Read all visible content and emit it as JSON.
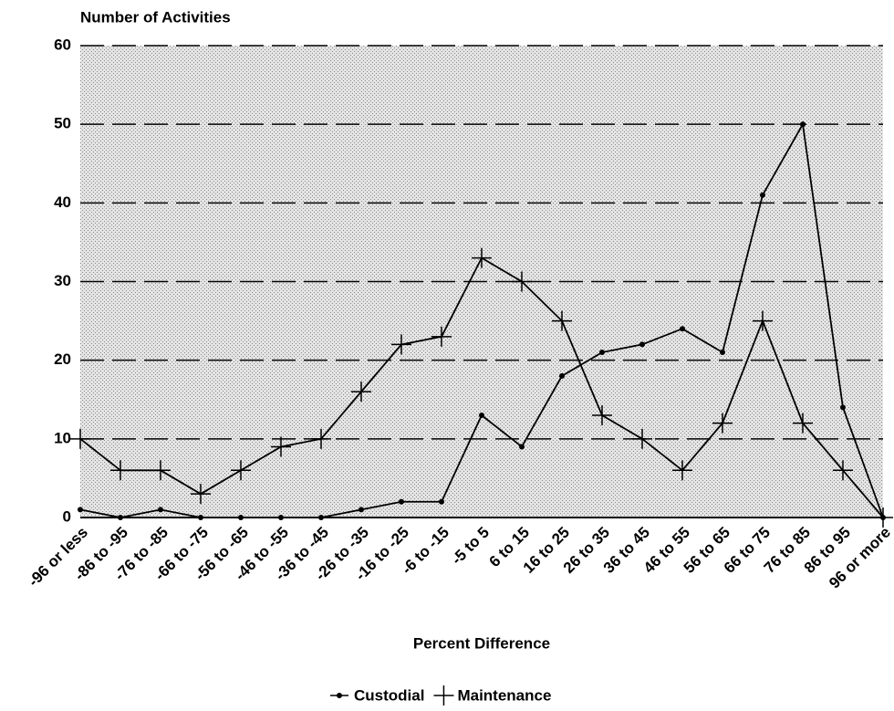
{
  "chart_data": {
    "type": "line",
    "y_axis_label": "Number of Activities",
    "x_axis_label": "Percent Difference",
    "categories": [
      "-96 or less",
      "-86 to -95",
      "-76 to -85",
      "-66 to -75",
      "-56 to -65",
      "-46 to -55",
      "-36 to -45",
      "-26 to -35",
      "-16 to -25",
      "-6 to -15",
      "-5 to 5",
      "6 to 15",
      "16 to 25",
      "26 to 35",
      "36 to 45",
      "46 to 55",
      "56 to 65",
      "66 to 75",
      "76 to 85",
      "86 to 95",
      "96 or more"
    ],
    "series": [
      {
        "name": "Custodial",
        "color": "#000000",
        "marker": "dot",
        "values": [
          1,
          0,
          1,
          0,
          0,
          0,
          0,
          1,
          2,
          2,
          13,
          9,
          18,
          21,
          22,
          24,
          21,
          41,
          50,
          14,
          0
        ]
      },
      {
        "name": "Maintenance",
        "color": "#000000",
        "marker": "plus",
        "values": [
          10,
          6,
          6,
          3,
          6,
          9,
          10,
          16,
          22,
          23,
          33,
          30,
          25,
          13,
          10,
          6,
          12,
          25,
          12,
          6,
          0
        ]
      }
    ],
    "ylim": [
      0,
      60
    ],
    "yticks": [
      0,
      10,
      20,
      30,
      40,
      50,
      60
    ],
    "grid": true
  }
}
